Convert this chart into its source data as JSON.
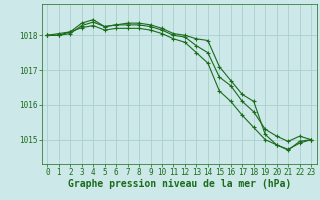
{
  "bg_color": "#cce8e8",
  "grid_color": "#aacfcf",
  "line_color": "#1a6b1a",
  "xlabel": "Graphe pression niveau de la mer (hPa)",
  "xlabel_fontsize": 7.0,
  "tick_fontsize": 5.5,
  "ylim": [
    1014.3,
    1018.9
  ],
  "xlim": [
    -0.5,
    23.5
  ],
  "yticks": [
    1015,
    1016,
    1017,
    1018
  ],
  "xticks": [
    0,
    1,
    2,
    3,
    4,
    5,
    6,
    7,
    8,
    9,
    10,
    11,
    12,
    13,
    14,
    15,
    16,
    17,
    18,
    19,
    20,
    21,
    22,
    23
  ],
  "series": [
    [
      1018.0,
      1018.0,
      1018.1,
      1018.35,
      1018.45,
      1018.25,
      1018.3,
      1018.35,
      1018.35,
      1018.3,
      1018.2,
      1018.05,
      1018.0,
      1017.9,
      1017.85,
      1017.1,
      1016.7,
      1016.3,
      1016.1,
      1015.15,
      1014.85,
      1014.7,
      1014.95,
      1015.0
    ],
    [
      1018.0,
      1018.0,
      1018.05,
      1018.28,
      1018.38,
      1018.25,
      1018.3,
      1018.3,
      1018.3,
      1018.25,
      1018.15,
      1018.0,
      1017.95,
      1017.7,
      1017.5,
      1016.8,
      1016.55,
      1016.1,
      1015.8,
      1015.3,
      1015.1,
      1014.95,
      1015.1,
      1015.0
    ],
    [
      1018.0,
      1018.05,
      1018.1,
      1018.22,
      1018.28,
      1018.15,
      1018.2,
      1018.2,
      1018.2,
      1018.15,
      1018.05,
      1017.9,
      1017.8,
      1017.5,
      1017.2,
      1016.4,
      1016.1,
      1015.7,
      1015.35,
      1015.0,
      1014.85,
      1014.72,
      1014.9,
      1015.0
    ]
  ]
}
